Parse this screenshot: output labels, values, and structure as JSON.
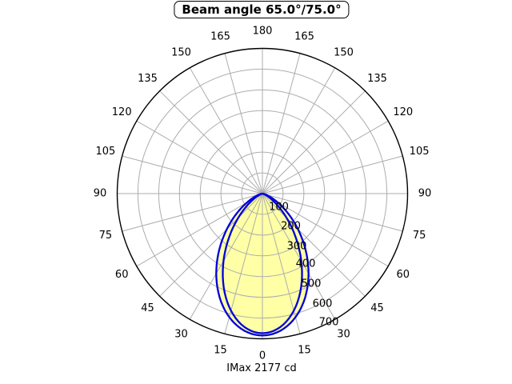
{
  "title": "Beam angle 65.0°/75.0°",
  "footer": "IMax 2177 cd",
  "chart_data": {
    "type": "polar",
    "title": "Beam angle 65.0°/75.0°",
    "footer": "IMax 2177 cd",
    "imax_cd": 2177,
    "beam_angle_label": "65.0°/75.0°",
    "angle_labels_deg": [
      0,
      15,
      30,
      45,
      60,
      75,
      90,
      105,
      120,
      135,
      150,
      165,
      180
    ],
    "radial_ticks_cd": [
      100,
      200,
      300,
      400,
      500,
      600,
      700
    ],
    "radial_max_cd": 700,
    "grid_angle_step_deg": 15,
    "series": [
      {
        "name": "beam-curve-75deg",
        "beam_angle_deg": 75.0,
        "peak_plot_cd": 684,
        "cos_exponent": 2.99,
        "stroke": "#0000DB",
        "fill": "#FFFFA6"
      },
      {
        "name": "beam-curve-65deg",
        "beam_angle_deg": 65.0,
        "peak_plot_cd": 673,
        "cos_exponent": 4.07,
        "stroke": "#0000DB",
        "fill": "none"
      }
    ],
    "colors": {
      "background": "#FFFFFF",
      "grid": "#ADADAD",
      "axis": "#000000",
      "curve": "#0000DB",
      "beam_fill": "#FFFFA6",
      "text": "#000000"
    }
  }
}
